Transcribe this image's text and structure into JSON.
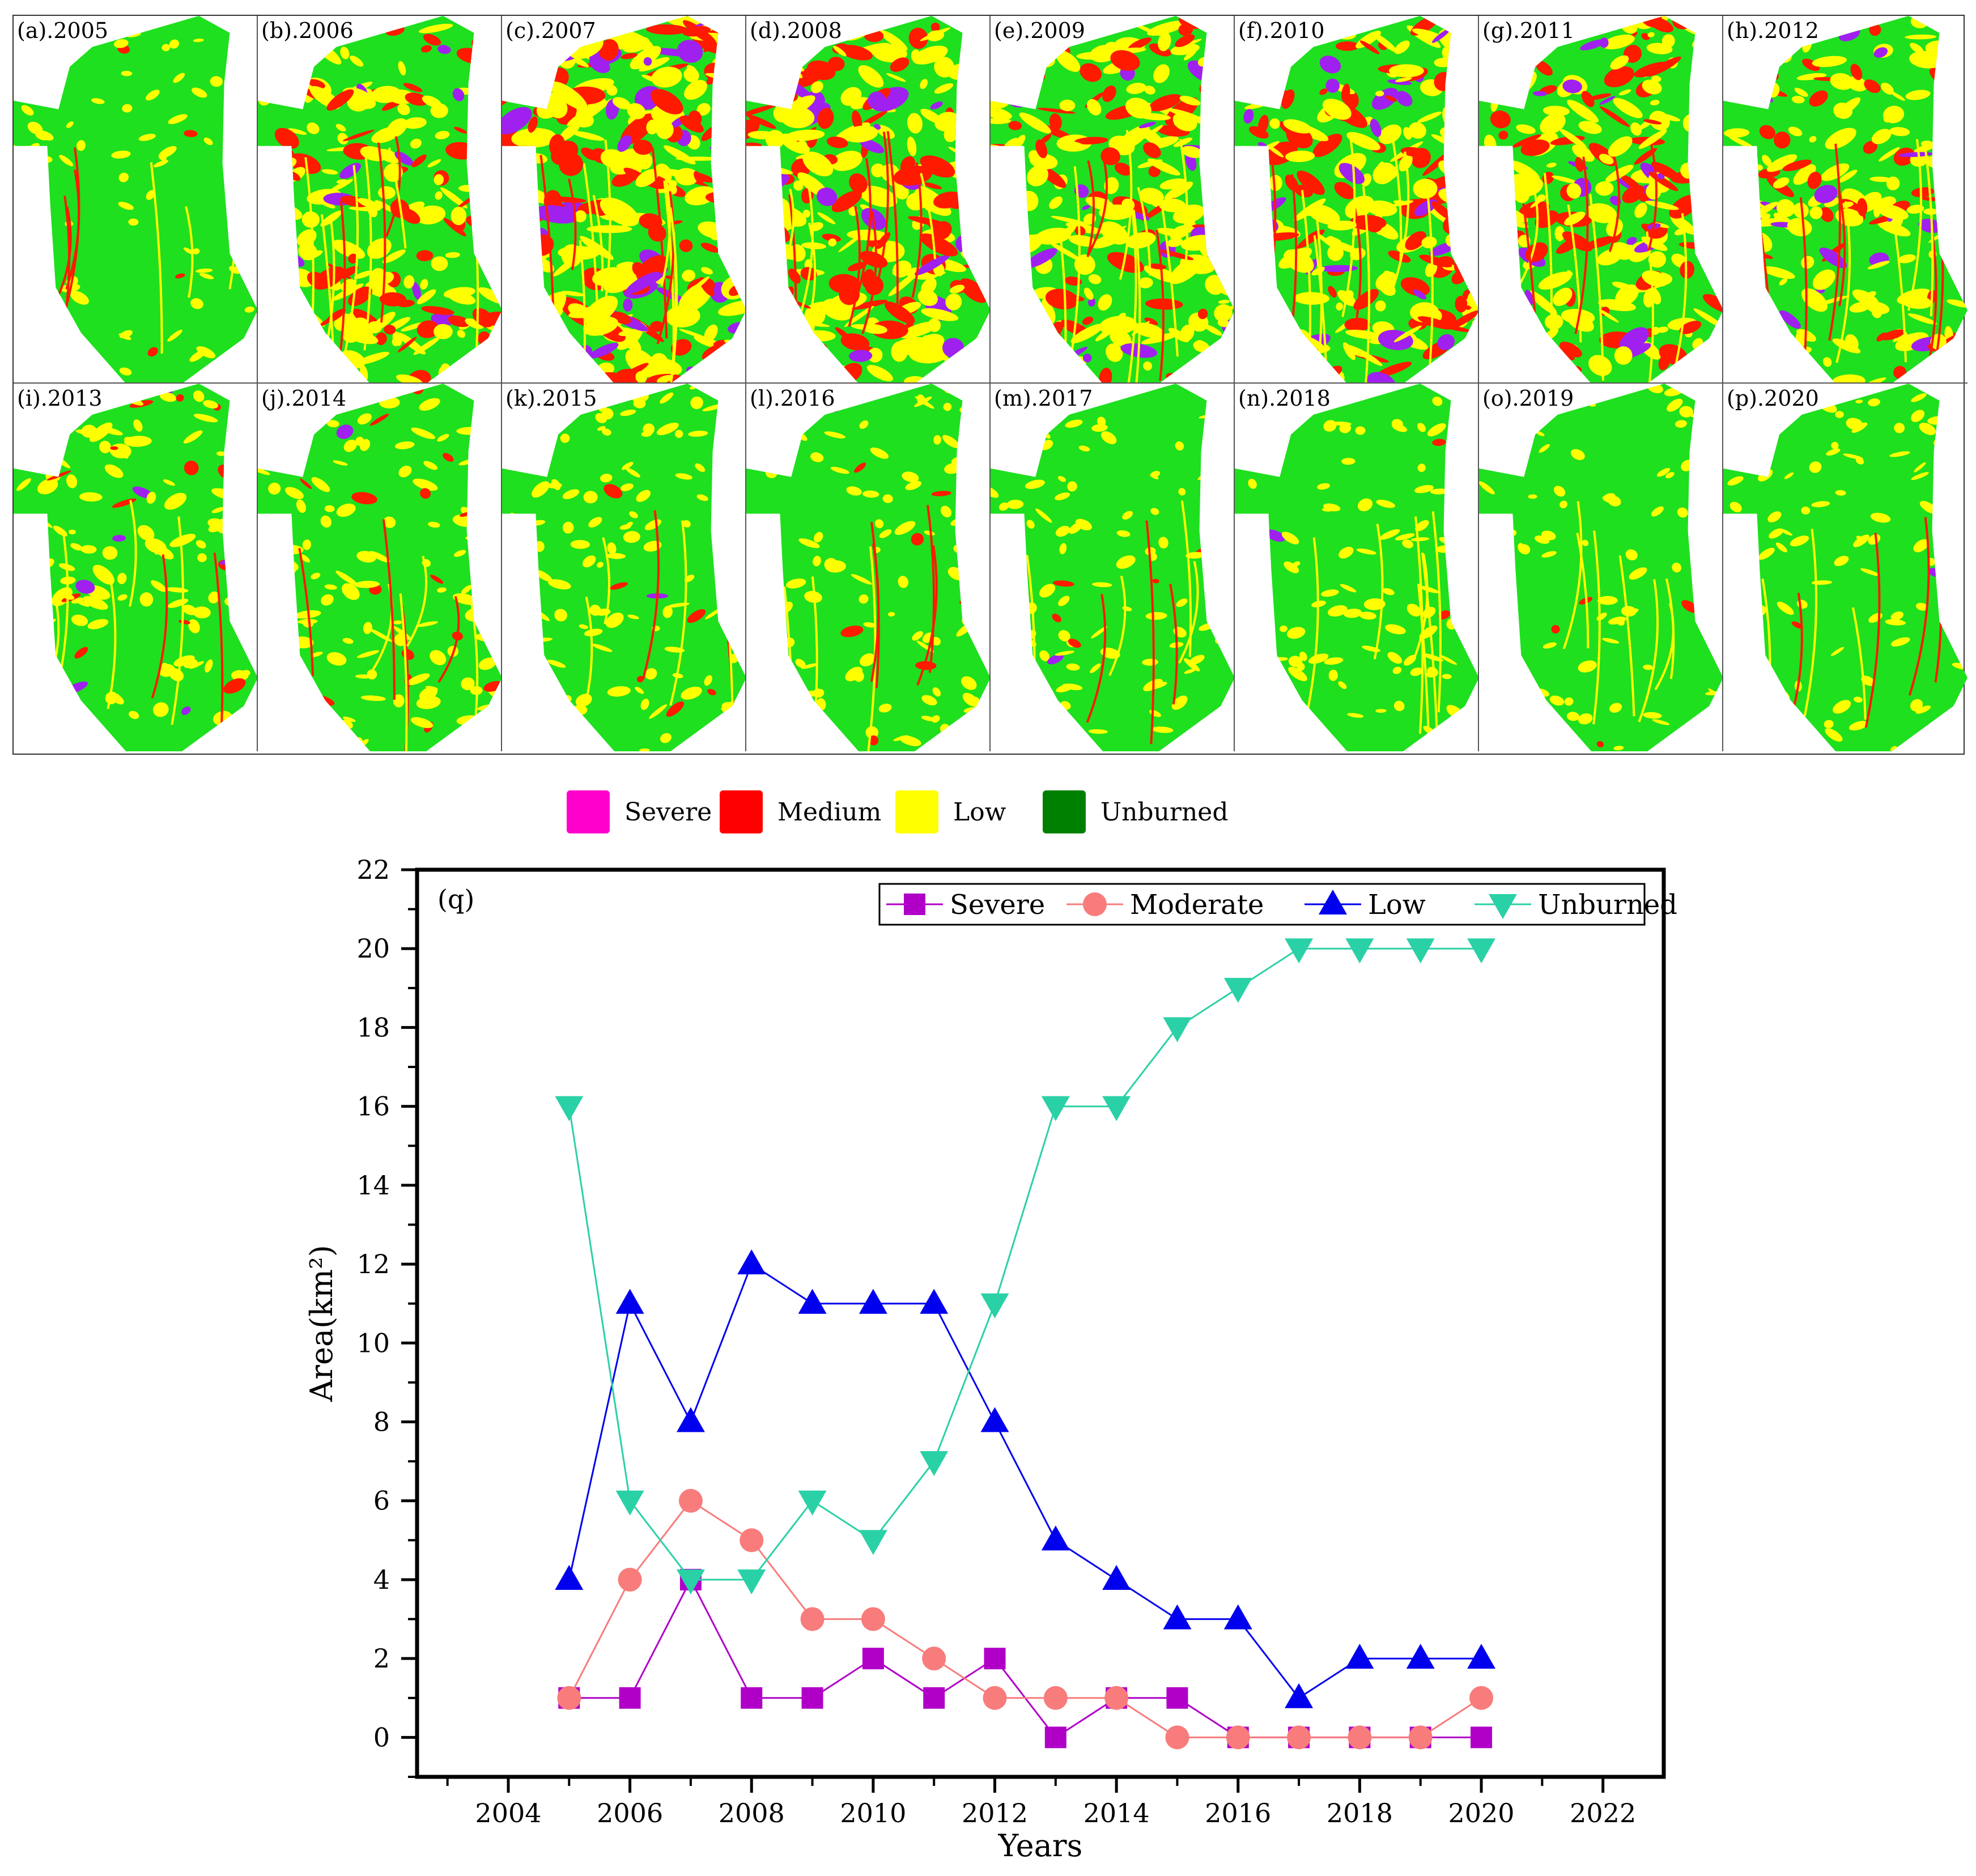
{
  "maps": {
    "legend": [
      {
        "label": "Severe",
        "color": "#ff00cc"
      },
      {
        "label": "Medium",
        "color": "#ff0000"
      },
      {
        "label": "Low",
        "color": "#ffff00"
      },
      {
        "label": "Unburned",
        "color": "#008000"
      }
    ],
    "map_colors": {
      "unburned": "#1ee01e",
      "low": "#ffff00",
      "medium": "#ff1a00",
      "severe": "#a020f0"
    },
    "panels": [
      {
        "label": "(a).2005",
        "severity": 0.1
      },
      {
        "label": "(b).2006",
        "severity": 0.62
      },
      {
        "label": "(c).2007",
        "severity": 0.95
      },
      {
        "label": "(d).2008",
        "severity": 0.85
      },
      {
        "label": "(e).2009",
        "severity": 0.75
      },
      {
        "label": "(f).2010",
        "severity": 0.8
      },
      {
        "label": "(g).2011",
        "severity": 0.7
      },
      {
        "label": "(h).2012",
        "severity": 0.6
      },
      {
        "label": "(i).2013",
        "severity": 0.35
      },
      {
        "label": "(j).2014",
        "severity": 0.3
      },
      {
        "label": "(k).2015",
        "severity": 0.22
      },
      {
        "label": "(l).2016",
        "severity": 0.18
      },
      {
        "label": "(m).2017",
        "severity": 0.14
      },
      {
        "label": "(n).2018",
        "severity": 0.14
      },
      {
        "label": "(o).2019",
        "severity": 0.1
      },
      {
        "label": "(p).2020",
        "severity": 0.12
      }
    ]
  },
  "chart_data": {
    "type": "line",
    "panel_label": "(q)",
    "xlabel": "Years",
    "ylabel": "Area(km²)",
    "xlim": [
      2002.5,
      2023
    ],
    "ylim": [
      -1,
      22
    ],
    "xticks": [
      2004,
      2006,
      2008,
      2010,
      2012,
      2014,
      2016,
      2018,
      2020,
      2022
    ],
    "yticks": [
      0,
      2,
      4,
      6,
      8,
      10,
      12,
      14,
      16,
      18,
      20,
      22
    ],
    "legend_position": "top-right",
    "x": [
      2005,
      2006,
      2007,
      2008,
      2009,
      2010,
      2011,
      2012,
      2013,
      2014,
      2015,
      2016,
      2017,
      2018,
      2019,
      2020
    ],
    "series": [
      {
        "name": "Severe",
        "color": "#b000c8",
        "marker": "square",
        "values": [
          1,
          1,
          4,
          1,
          1,
          2,
          1,
          2,
          0,
          1,
          1,
          0,
          0,
          0,
          0,
          0
        ]
      },
      {
        "name": "Moderate",
        "color": "#f87c7c",
        "marker": "circle",
        "values": [
          1,
          4,
          6,
          5,
          3,
          3,
          2,
          1,
          1,
          1,
          0,
          0,
          0,
          0,
          0,
          1
        ]
      },
      {
        "name": "Low",
        "color": "#0000ee",
        "marker": "triangle-up",
        "values": [
          4,
          11,
          8,
          12,
          11,
          11,
          11,
          8,
          5,
          4,
          3,
          3,
          1,
          2,
          2,
          2
        ]
      },
      {
        "name": "Unburned",
        "color": "#2ad1a6",
        "marker": "triangle-down",
        "values": [
          16,
          6,
          4,
          4,
          6,
          5,
          7,
          11,
          16,
          16,
          18,
          19,
          20,
          20,
          20,
          20
        ]
      }
    ]
  }
}
